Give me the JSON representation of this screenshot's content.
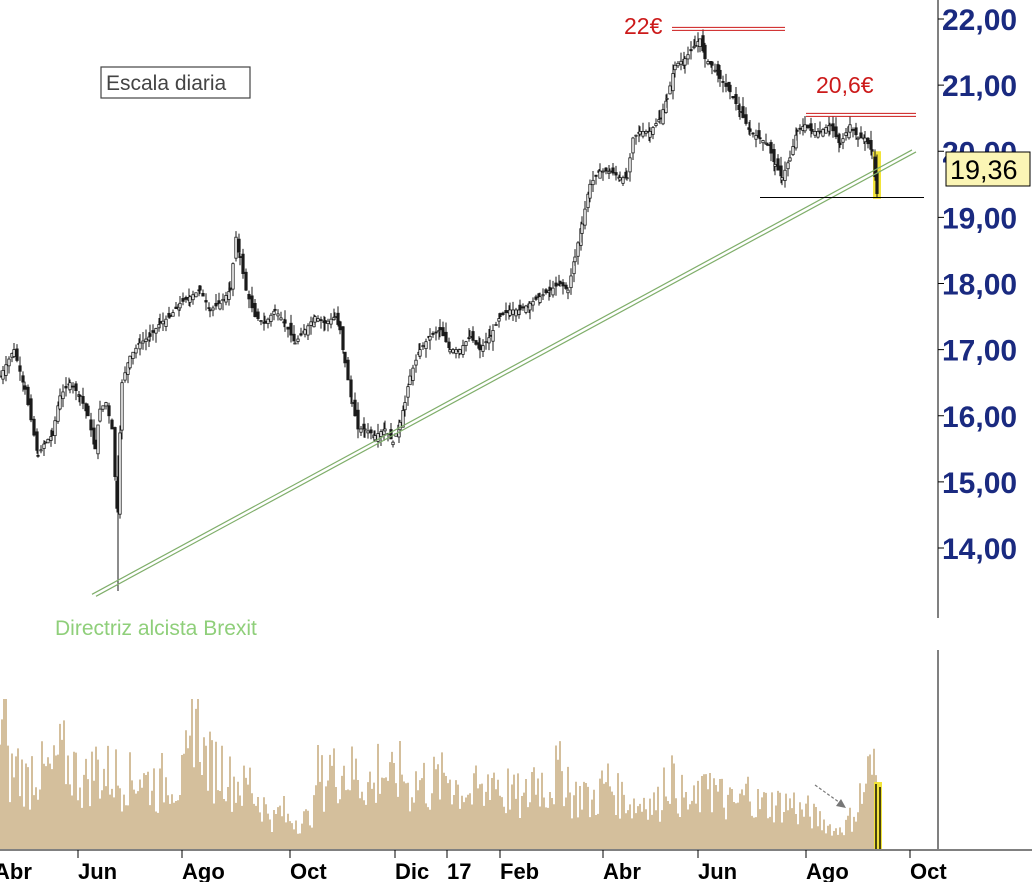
{
  "chart_data": {
    "type": "line",
    "title": "",
    "subtitle": "",
    "xlabel": "",
    "ylabel": "",
    "ylim": [
      13.2,
      22.2
    ],
    "y_ticks": [
      "22,00",
      "21,00",
      "20,00",
      "19,00",
      "18,00",
      "17,00",
      "16,00",
      "15,00",
      "14,00"
    ],
    "x_ticks": [
      "Abr",
      "Jun",
      "Ago",
      "Oct",
      "Dic",
      "17",
      "Feb",
      "Abr",
      "Jun",
      "Ago",
      "Oct"
    ],
    "grid": false,
    "series": [
      {
        "name": "",
        "style": "candlestick",
        "color": "#1a1a1a",
        "x": [
          0,
          14,
          25,
          38,
          45,
          52,
          60,
          70,
          80,
          88,
          95,
          100,
          106,
          112,
          117,
          122,
          130,
          140,
          150,
          160,
          170,
          180,
          190,
          200,
          210,
          220,
          230,
          236,
          240,
          246,
          255,
          265,
          275,
          285,
          295,
          305,
          315,
          325,
          335,
          340,
          345,
          352,
          358,
          365,
          375,
          385,
          393,
          400,
          405,
          410,
          420,
          430,
          440,
          450,
          460,
          470,
          480,
          490,
          500,
          510,
          520,
          530,
          540,
          550,
          560,
          568,
          575,
          582,
          590,
          600,
          610,
          620,
          627,
          633,
          640,
          650,
          660,
          667,
          675,
          685,
          695,
          700,
          705,
          712,
          720,
          730,
          740,
          750,
          760,
          768,
          775,
          782,
          790,
          797,
          805,
          812,
          820,
          830,
          840,
          850,
          858,
          865,
          872,
          877
        ],
        "y": [
          16.6,
          17.0,
          16.4,
          15.4,
          15.6,
          15.7,
          16.3,
          16.5,
          16.3,
          16.0,
          15.5,
          16.1,
          16.2,
          15.8,
          14.6,
          16.5,
          16.9,
          17.1,
          17.2,
          17.4,
          17.5,
          17.7,
          17.8,
          17.9,
          17.6,
          17.7,
          17.9,
          18.7,
          18.4,
          17.9,
          17.5,
          17.4,
          17.6,
          17.4,
          17.1,
          17.3,
          17.5,
          17.4,
          17.5,
          17.3,
          16.8,
          16.2,
          15.8,
          15.8,
          15.7,
          15.8,
          15.6,
          15.9,
          16.2,
          16.6,
          17.0,
          17.2,
          17.3,
          17.0,
          17.0,
          17.2,
          17.0,
          17.2,
          17.5,
          17.6,
          17.6,
          17.7,
          17.8,
          17.9,
          18.0,
          17.9,
          18.4,
          18.9,
          19.5,
          19.7,
          19.7,
          19.6,
          19.6,
          20.2,
          20.3,
          20.3,
          20.5,
          20.8,
          21.3,
          21.4,
          21.6,
          21.7,
          21.4,
          21.3,
          21.1,
          20.9,
          20.6,
          20.3,
          20.2,
          20.1,
          19.8,
          19.6,
          19.9,
          20.3,
          20.4,
          20.3,
          20.3,
          20.4,
          20.1,
          20.4,
          20.2,
          20.2,
          20.0,
          19.36
        ]
      },
      {
        "name": "Directriz alcista Brexit",
        "style": "trendline",
        "color": "#7fae6a",
        "x": [
          92,
          912
        ],
        "y": [
          13.3,
          20.02
        ]
      },
      {
        "name": "",
        "style": "resistance",
        "color": "#cc1a1a",
        "x": [
          672,
          785
        ],
        "y": [
          21.85,
          21.85
        ]
      },
      {
        "name": "",
        "style": "resistance",
        "color": "#cc1a1a",
        "x": [
          806,
          916
        ],
        "y": [
          20.55,
          20.55
        ]
      },
      {
        "name": "",
        "style": "support",
        "color": "#000000",
        "x": [
          760,
          924
        ],
        "y": [
          19.3,
          19.3
        ]
      }
    ],
    "volume": {
      "color": "#a87f3a",
      "highlight_color": "#f2e43a",
      "values": [
        0.9,
        0.5,
        0.55,
        0.5,
        0.45,
        0.55,
        0.5,
        0.5,
        0.5,
        0.6,
        0.6,
        0.55,
        0.5,
        0.45,
        0.5,
        0.55,
        0.5,
        0.5,
        0.5,
        0.45,
        0.5,
        0.45,
        0.5,
        0.45,
        0.45,
        0.4,
        0.45,
        0.5,
        0.45,
        0.45,
        0.55,
        0.95,
        0.8,
        0.6,
        0.55,
        0.55,
        0.55,
        0.45,
        0.45,
        0.4,
        0.45,
        0.35,
        0.3,
        0.25,
        0.2,
        0.25,
        0.2,
        0.2,
        0.18,
        0.2,
        0.25,
        0.5,
        0.45,
        0.55,
        0.5,
        0.55,
        0.5,
        0.5,
        0.45,
        0.45,
        0.4,
        0.55,
        0.5,
        0.45,
        0.5,
        0.5,
        0.4,
        0.45,
        0.45,
        0.4,
        0.45,
        0.45,
        0.5,
        0.45,
        0.4,
        0.4,
        0.35,
        0.4,
        0.35,
        0.5,
        0.45,
        0.35,
        0.4,
        0.35,
        0.3,
        0.35,
        0.5,
        0.45,
        0.4,
        0.45,
        0.5,
        0.5,
        0.35,
        0.35,
        0.4,
        0.3,
        0.35,
        0.4,
        0.45,
        0.4,
        0.35,
        0.35,
        0.3,
        0.3,
        0.35,
        0.3,
        0.3,
        0.45,
        0.5,
        0.4,
        0.35,
        0.3,
        0.3,
        0.35,
        0.55,
        0.4,
        0.35,
        0.3,
        0.3,
        0.3,
        0.35,
        0.4,
        0.3,
        0.3,
        0.3,
        0.3,
        0.3,
        0.3,
        0.3,
        0.25,
        0.25,
        0.22,
        0.2,
        0.18,
        0.15,
        0.12,
        0.15,
        0.2,
        0.25,
        0.35,
        0.5,
        0.5
      ],
      "highlight_last": 2
    },
    "annotations": {
      "resistance_high": "22€",
      "resistance_low": "20,6€",
      "trendline_label": "Directriz alcista Brexit",
      "box_label": "Escala diaria",
      "last_price": "19,36"
    }
  }
}
